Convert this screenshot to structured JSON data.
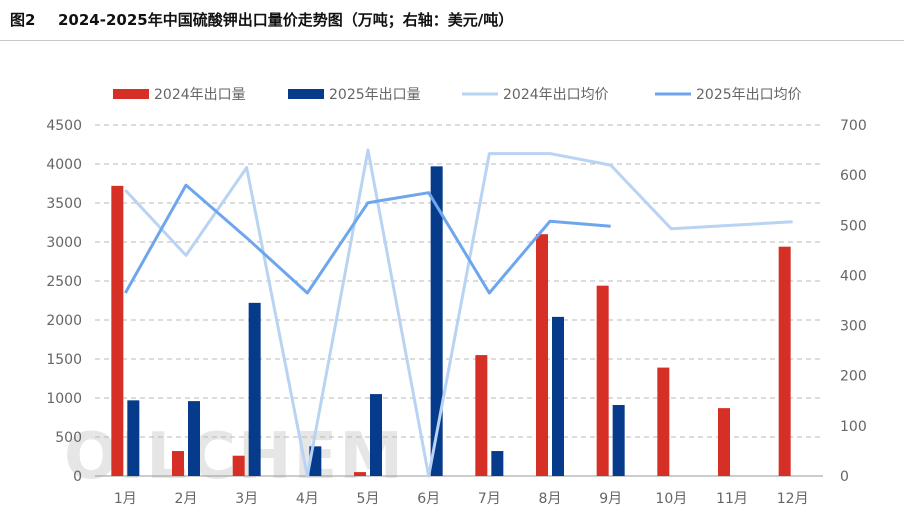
{
  "figure": {
    "number": "图2",
    "title": "2024-2025年中国硫酸钾出口量价走势图（万吨；右轴：美元/吨）",
    "watermark": "OILCHEM"
  },
  "colors": {
    "bar2024": "#d62f26",
    "bar2025": "#063a8a",
    "line2024": "#b9d3f2",
    "line2025": "#6ea6ee",
    "grid": "#b8b8b8",
    "tick": "#666666"
  },
  "chart_data": {
    "type": "bar",
    "categories": [
      "1月",
      "2月",
      "3月",
      "4月",
      "5月",
      "6月",
      "7月",
      "8月",
      "9月",
      "10月",
      "11月",
      "12月"
    ],
    "y_left": {
      "ylim": [
        0,
        4500
      ],
      "ticks": [
        "0",
        "500",
        "1000",
        "1500",
        "2000",
        "2500",
        "3000",
        "3500",
        "4000",
        "4500"
      ]
    },
    "y_right": {
      "ylim": [
        0,
        700
      ],
      "ticks": [
        "0",
        "100",
        "200",
        "300",
        "400",
        "500",
        "600",
        "700"
      ]
    },
    "grid": true,
    "legend_position": "top",
    "series": [
      {
        "name": "2024年出口量",
        "kind": "bar",
        "axis": "left",
        "values": [
          3720,
          320,
          260,
          0,
          50,
          0,
          1550,
          3100,
          2440,
          1390,
          870,
          2940
        ]
      },
      {
        "name": "2025年出口量",
        "kind": "bar",
        "axis": "left",
        "values": [
          970,
          960,
          2220,
          380,
          1050,
          3970,
          320,
          2040,
          910,
          null,
          null,
          null
        ]
      },
      {
        "name": "2024年出口均价",
        "kind": "line",
        "axis": "right",
        "values": [
          570,
          440,
          615,
          0,
          650,
          0,
          643,
          643,
          620,
          493,
          null,
          507
        ]
      },
      {
        "name": "2025年出口均价",
        "kind": "line",
        "axis": "right",
        "values": [
          365,
          580,
          475,
          365,
          545,
          565,
          365,
          508,
          498,
          null,
          null,
          null
        ]
      }
    ]
  }
}
